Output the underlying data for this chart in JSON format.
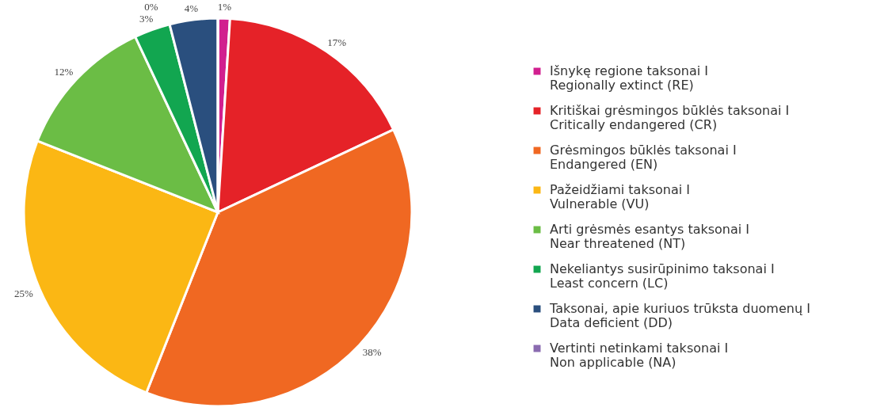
{
  "chart_data": {
    "type": "pie",
    "categories": [
      "Išnykę regione taksonai I\nRegionally extinct (RE)",
      "Kritiškai grėsmingos būklės taksonai I\nCritically endangered (CR)",
      "Grėsmingos būklės taksonai I\nEndangered (EN)",
      "Pažeidžiami taksonai I\nVulnerable (VU)",
      "Arti grėsmės esantys taksonai I\nNear threatened (NT)",
      "Nekeliantys susirūpinimo taksonai I\nLeast concern (LC)",
      "Taksonai, apie kuriuos trūksta duomenų I\nData deficient (DD)",
      "Vertinti netinkami taksonai I\nNon applicable (NA)"
    ],
    "values": [
      1,
      17,
      38,
      25,
      12,
      3,
      4,
      0
    ],
    "value_labels": [
      "1%",
      "17%",
      "38%",
      "25%",
      "12%",
      "3%",
      "4%",
      "0%"
    ],
    "colors": [
      "#d11f8f",
      "#e52228",
      "#f06822",
      "#fbb714",
      "#6bbd45",
      "#12a650",
      "#2a4f7e",
      "#8a6bb0"
    ],
    "legend": "right"
  }
}
